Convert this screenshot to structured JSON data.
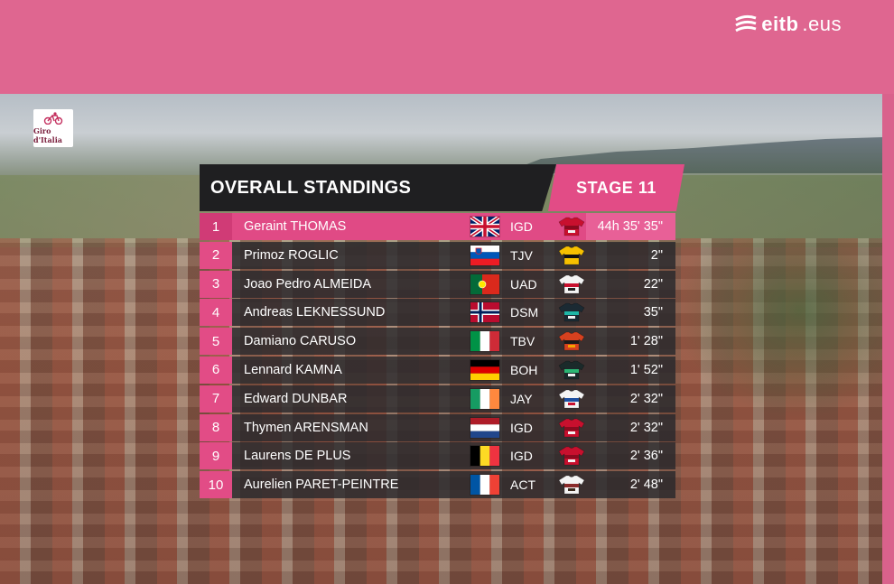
{
  "broadcaster": {
    "logo_bold": "eitb",
    "logo_thin": ".eus"
  },
  "event": {
    "logo_text": "Giro d'Italia"
  },
  "standings": {
    "title": "OVERALL STANDINGS",
    "stage": "STAGE 11",
    "rows": [
      {
        "pos": "1",
        "name": "Geraint THOMAS",
        "flag": "gb",
        "team": "IGD",
        "jersey": "ineos-jersey-icon",
        "time": "44h 35' 35\""
      },
      {
        "pos": "2",
        "name": "Primoz ROGLIC",
        "flag": "si",
        "team": "TJV",
        "jersey": "jumbo-jersey-icon",
        "time": "2\""
      },
      {
        "pos": "3",
        "name": "Joao Pedro ALMEIDA",
        "flag": "pt",
        "team": "UAD",
        "jersey": "uae-jersey-icon",
        "time": "22\""
      },
      {
        "pos": "4",
        "name": "Andreas LEKNESSUND",
        "flag": "no",
        "team": "DSM",
        "jersey": "dsm-jersey-icon",
        "time": "35\""
      },
      {
        "pos": "5",
        "name": "Damiano CARUSO",
        "flag": "it",
        "team": "TBV",
        "jersey": "bahrain-jersey-icon",
        "time": "1' 28\""
      },
      {
        "pos": "6",
        "name": "Lennard KAMNA",
        "flag": "de",
        "team": "BOH",
        "jersey": "bora-jersey-icon",
        "time": "1' 52\""
      },
      {
        "pos": "7",
        "name": "Edward DUNBAR",
        "flag": "ie",
        "team": "JAY",
        "jersey": "jayco-jersey-icon",
        "time": "2' 32\""
      },
      {
        "pos": "8",
        "name": "Thymen ARENSMAN",
        "flag": "nl",
        "team": "IGD",
        "jersey": "ineos-jersey-icon",
        "time": "2' 32\""
      },
      {
        "pos": "9",
        "name": "Laurens DE PLUS",
        "flag": "be",
        "team": "IGD",
        "jersey": "ineos-jersey-icon",
        "time": "2' 36\""
      },
      {
        "pos": "10",
        "name": "Aurelien PARET-PEINTRE",
        "flag": "fr",
        "team": "ACT",
        "jersey": "ag2r-jersey-icon",
        "time": "2' 48\""
      }
    ]
  },
  "colors": {
    "accent_pink": "#e24c86",
    "panel_dark": "#1f1f21",
    "frame_pink": "#df6690"
  }
}
